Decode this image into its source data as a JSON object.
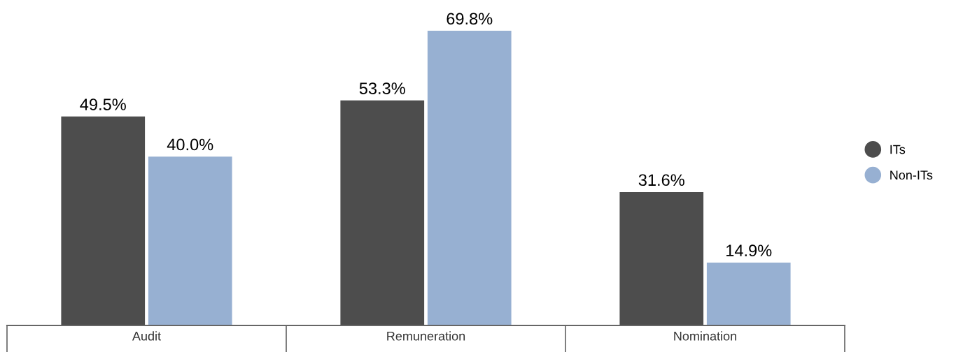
{
  "chart_data": {
    "type": "bar",
    "categories": [
      "Audit",
      "Remuneration",
      "Nomination"
    ],
    "series": [
      {
        "name": "ITs",
        "color": "#4d4d4d",
        "values": [
          49.5,
          53.3,
          31.6
        ],
        "value_labels": [
          "49.5%",
          "53.3%",
          "31.6%"
        ]
      },
      {
        "name": "Non-ITs",
        "color": "#97b0d2",
        "values": [
          40.0,
          69.8,
          14.9
        ],
        "value_labels": [
          "40.0%",
          "69.8%",
          "14.9%"
        ]
      }
    ],
    "legend": "right",
    "grid": false,
    "marker": "circle"
  }
}
